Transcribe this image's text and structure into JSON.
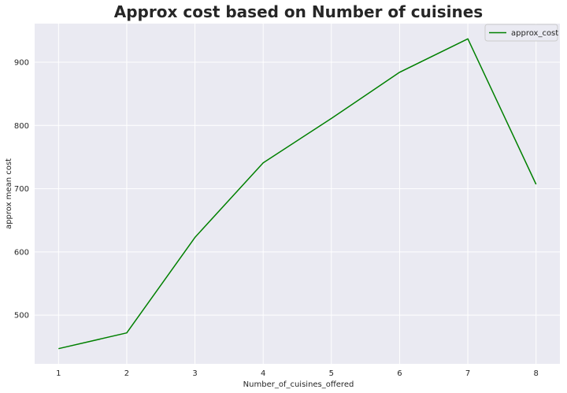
{
  "chart_data": {
    "type": "line",
    "title": "Approx cost based on Number of cuisines",
    "xlabel": "Number_of_cuisines_offered",
    "ylabel": "approx mean cost",
    "x": [
      1,
      2,
      3,
      4,
      5,
      6,
      7,
      8
    ],
    "series": [
      {
        "name": "approx_cost",
        "color": "#008000",
        "values": [
          447,
          472,
          623,
          741,
          811,
          884,
          937,
          707
        ]
      }
    ],
    "xlim": [
      0.65,
      8.35
    ],
    "ylim": [
      423,
      961
    ],
    "xticks": [
      1,
      2,
      3,
      4,
      5,
      6,
      7,
      8
    ],
    "yticks": [
      500,
      600,
      700,
      800,
      900
    ],
    "grid": true,
    "legend_position": "top-right",
    "background_color": "#eaeaf2",
    "grid_color": "#ffffff"
  }
}
